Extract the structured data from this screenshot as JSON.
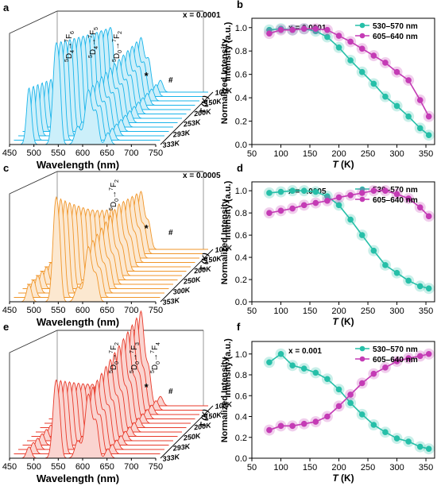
{
  "chart_data": [
    {
      "panel": "a",
      "type": "waterfall-spectra",
      "xlabel": "Wavelength (nm)",
      "x_ticks": [
        "450",
        "500",
        "550",
        "600",
        "650",
        "700",
        "750"
      ],
      "depth_label": "T (K)",
      "temperature_labels": [
        "100K",
        "150K",
        "200K",
        "253K",
        "293K",
        "333K"
      ],
      "annotation": "x = 0.0001",
      "transitions": [
        {
          "upper": "5",
          "upper_rest": "D",
          "upper_sub": "4",
          "arrow": "→",
          "lower": "7",
          "lower_rest": "F",
          "lower_sub": "6"
        },
        {
          "upper": "5",
          "upper_rest": "D",
          "upper_sub": "4",
          "arrow": "→",
          "lower": "7",
          "lower_rest": "F",
          "lower_sub": "5"
        },
        {
          "upper": "5",
          "upper_rest": "D",
          "upper_sub": "0",
          "arrow": "→",
          "lower": "7",
          "lower_rest": "F",
          "lower_sub": "2"
        }
      ],
      "markers": [
        "*",
        "#"
      ],
      "color": "#19b4ea",
      "ylabel": "Intensity (a.u.)"
    },
    {
      "panel": "b",
      "type": "line",
      "xlabel_italic": "T",
      "xlabel_unit": "(K)",
      "ylabel": "Normalized Intensity",
      "annotation": "x = 0.0001",
      "x_ticks": [
        "50",
        "100",
        "150",
        "200",
        "250",
        "300",
        "350"
      ],
      "y_ticks": [
        "0.0",
        "0.2",
        "0.4",
        "0.6",
        "0.8",
        "1.0"
      ],
      "xlim": [
        50,
        365
      ],
      "ylim": [
        0,
        1.08
      ],
      "x": [
        80,
        100,
        120,
        140,
        160,
        180,
        200,
        220,
        240,
        260,
        280,
        300,
        320,
        340,
        355
      ],
      "series": [
        {
          "name": "530–570 nm",
          "color": "#26bfa8",
          "values": [
            0.98,
            0.99,
            0.98,
            0.99,
            0.97,
            0.92,
            0.83,
            0.72,
            0.62,
            0.52,
            0.41,
            0.33,
            0.24,
            0.14,
            0.08
          ]
        },
        {
          "name": "605–640 nm",
          "color": "#c43bb5",
          "values": [
            0.95,
            0.98,
            0.98,
            0.99,
            0.99,
            0.98,
            0.93,
            0.88,
            0.82,
            0.76,
            0.7,
            0.62,
            0.55,
            0.38,
            0.24
          ]
        }
      ]
    },
    {
      "panel": "c",
      "type": "waterfall-spectra",
      "xlabel": "Wavelength (nm)",
      "x_ticks": [
        "450",
        "500",
        "550",
        "600",
        "650",
        "700",
        "750"
      ],
      "depth_label": "T (K)",
      "temperature_labels": [
        "100K",
        "150K",
        "200K",
        "250K",
        "300K",
        "353K"
      ],
      "annotation": "x = 0.0005",
      "transitions": [
        {
          "upper": "5",
          "upper_rest": "D",
          "upper_sub": "0",
          "arrow": "→",
          "lower": "7",
          "lower_rest": "F",
          "lower_sub": "2"
        }
      ],
      "markers": [
        "*",
        "#"
      ],
      "color": "#f0962a",
      "ylabel": "Intensity (a.u.)"
    },
    {
      "panel": "d",
      "type": "line",
      "xlabel_italic": "T",
      "xlabel_unit": "(K)",
      "ylabel": "Normalized Intensity",
      "annotation": "x = 0.0005",
      "x_ticks": [
        "50",
        "100",
        "150",
        "200",
        "250",
        "300",
        "350"
      ],
      "y_ticks": [
        "0.0",
        "0.2",
        "0.4",
        "0.6",
        "0.8",
        "1.0"
      ],
      "xlim": [
        50,
        365
      ],
      "ylim": [
        0,
        1.08
      ],
      "x": [
        80,
        100,
        120,
        140,
        160,
        180,
        200,
        220,
        240,
        260,
        280,
        300,
        320,
        340,
        355
      ],
      "series": [
        {
          "name": "530–570 nm",
          "color": "#26bfa8",
          "values": [
            0.98,
            0.99,
            1.0,
            1.0,
            0.99,
            0.95,
            0.87,
            0.74,
            0.6,
            0.46,
            0.33,
            0.26,
            0.19,
            0.14,
            0.12
          ]
        },
        {
          "name": "605–640 nm",
          "color": "#c43bb5",
          "values": [
            0.8,
            0.82,
            0.84,
            0.87,
            0.89,
            0.91,
            0.94,
            0.96,
            0.98,
            1.0,
            1.0,
            0.97,
            0.93,
            0.85,
            0.77
          ]
        }
      ]
    },
    {
      "panel": "e",
      "type": "waterfall-spectra",
      "xlabel": "Wavelength (nm)",
      "x_ticks": [
        "450",
        "500",
        "550",
        "600",
        "650",
        "700",
        "750"
      ],
      "depth_label": "T (K)",
      "temperature_labels": [
        "100K",
        "150K",
        "200K",
        "250K",
        "293K",
        "333K"
      ],
      "annotation": "",
      "transitions": [
        {
          "upper": "5",
          "upper_rest": "D",
          "upper_sub": "0",
          "arrow": "→",
          "lower": "7",
          "lower_rest": "F",
          "lower_sub": "2"
        },
        {
          "upper": "5",
          "upper_rest": "D",
          "upper_sub": "0",
          "arrow": "→",
          "lower": "7",
          "lower_rest": "F",
          "lower_sub": "3"
        },
        {
          "upper": "5",
          "upper_rest": "D",
          "upper_sub": "0",
          "arrow": "→",
          "lower": "7",
          "lower_rest": "F",
          "lower_sub": "4"
        }
      ],
      "markers": [
        "*",
        "#"
      ],
      "color": "#e83a2a",
      "ylabel": "Intensity (a.u.)"
    },
    {
      "panel": "f",
      "type": "line",
      "xlabel_italic": "T",
      "xlabel_unit": "(K)",
      "ylabel": "Normalized Intensity",
      "annotation": "x = 0.001",
      "x_ticks": [
        "50",
        "100",
        "150",
        "200",
        "250",
        "300",
        "350"
      ],
      "y_ticks": [
        "0.0",
        "0.2",
        "0.4",
        "0.6",
        "0.8",
        "1.0"
      ],
      "xlim": [
        50,
        365
      ],
      "ylim": [
        0,
        1.12
      ],
      "x": [
        80,
        100,
        120,
        140,
        160,
        180,
        200,
        220,
        240,
        260,
        280,
        300,
        320,
        340,
        355
      ],
      "series": [
        {
          "name": "530–570 nm",
          "color": "#26bfa8",
          "values": [
            0.92,
            1.0,
            0.89,
            0.86,
            0.82,
            0.76,
            0.66,
            0.53,
            0.42,
            0.32,
            0.25,
            0.19,
            0.16,
            0.11,
            0.09
          ]
        },
        {
          "name": "605–640 nm",
          "color": "#c43bb5",
          "values": [
            0.27,
            0.31,
            0.31,
            0.33,
            0.35,
            0.4,
            0.5,
            0.61,
            0.72,
            0.81,
            0.87,
            0.93,
            0.96,
            0.98,
            1.0
          ]
        }
      ]
    }
  ]
}
